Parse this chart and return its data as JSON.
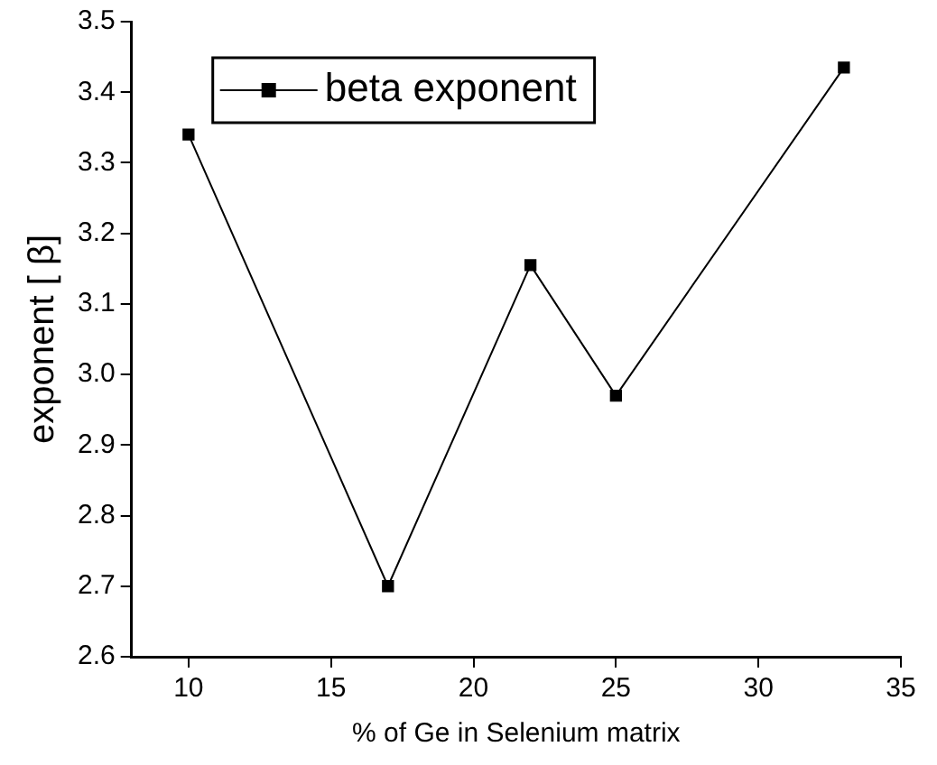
{
  "chart_data": {
    "type": "line",
    "xlabel": "% of Ge in Selenium matrix",
    "ylabel": "exponent [ β]",
    "x": [
      10,
      17,
      22,
      25,
      33
    ],
    "series": [
      {
        "name": "beta exponent",
        "color": "#000000",
        "values": [
          3.34,
          2.7,
          3.155,
          2.97,
          3.435
        ]
      }
    ],
    "xlim": [
      8,
      35
    ],
    "xticks": [
      10,
      15,
      20,
      25,
      30,
      35
    ],
    "ylim": [
      2.6,
      3.5
    ],
    "yticks": [
      2.6,
      2.7,
      2.8,
      2.9,
      {
        "value": 3,
        "label": "3.0"
      },
      3.1,
      3.2,
      3.3,
      3.4,
      3.5
    ],
    "grid": false,
    "legend": "top left",
    "marker": "square",
    "line_style": "solid"
  }
}
